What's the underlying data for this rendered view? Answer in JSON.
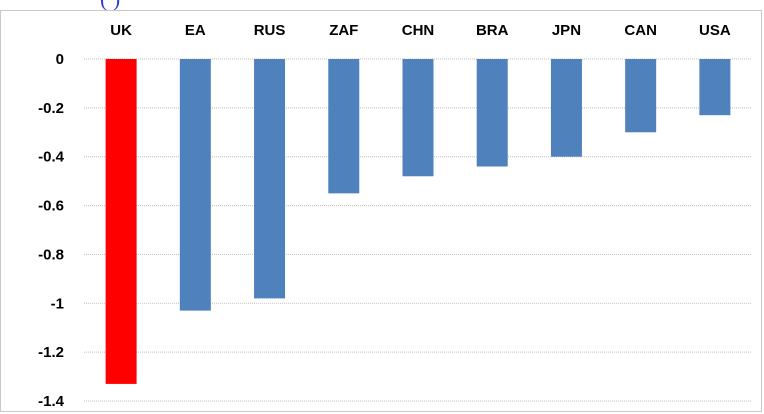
{
  "chart_data": {
    "type": "bar",
    "categories": [
      "UK",
      "EA",
      "RUS",
      "ZAF",
      "CHN",
      "BRA",
      "JPN",
      "CAN",
      "USA"
    ],
    "values": [
      -1.33,
      -1.03,
      -0.98,
      -0.55,
      -0.48,
      -0.44,
      -0.4,
      -0.3,
      -0.23
    ],
    "highlight_category": "UK",
    "colors": {
      "default": "#4f81bd",
      "highlight": "#ff0000",
      "grid": "#bfbfbf"
    },
    "ylim": [
      -1.4,
      0
    ],
    "yticks": [
      "0",
      "-0.2",
      "-0.4",
      "-0.6",
      "-0.8",
      "-1",
      "-1.2",
      "-1.4"
    ],
    "ytick_values": [
      0,
      -0.2,
      -0.4,
      -0.6,
      -0.8,
      -1,
      -1.2,
      -1.4
    ],
    "grid": true,
    "category_labels_position": "top"
  }
}
